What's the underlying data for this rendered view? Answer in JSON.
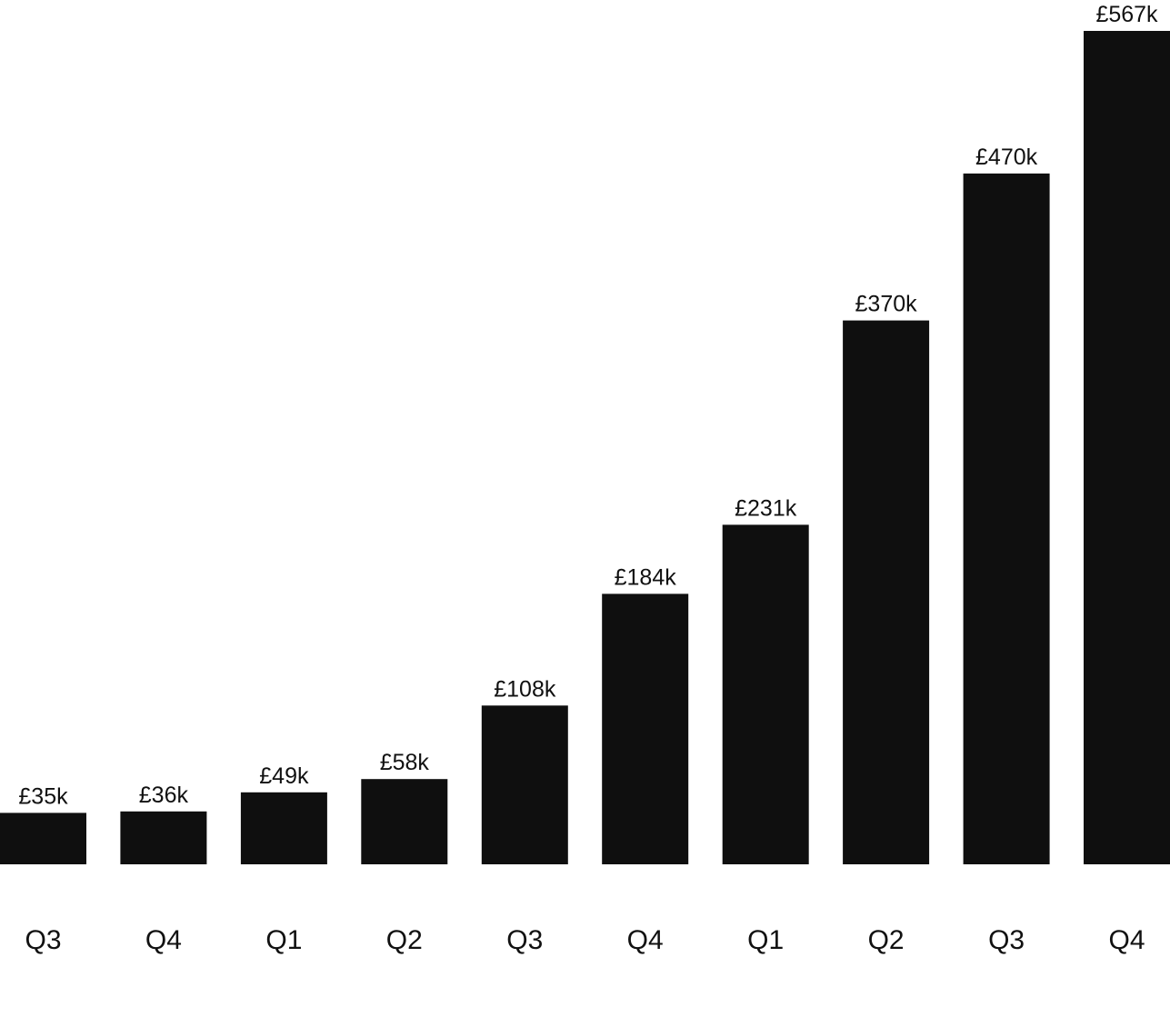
{
  "chart_data": {
    "type": "bar",
    "title": "",
    "xlabel": "",
    "ylabel": "",
    "categories": [
      "Q3",
      "Q4",
      "Q1",
      "Q2",
      "Q3",
      "Q4",
      "Q1",
      "Q2",
      "Q3",
      "Q4"
    ],
    "values": [
      35,
      36,
      49,
      58,
      108,
      184,
      231,
      370,
      470,
      567
    ],
    "data_labels": [
      "£35k",
      "£36k",
      "£49k",
      "£58k",
      "£108k",
      "£184k",
      "£231k",
      "£370k",
      "£470k",
      "£567k"
    ],
    "unit": "£k",
    "ylim": [
      0,
      567
    ],
    "grid": false,
    "legend": "none",
    "colors": {
      "bar": "#0f0f0f",
      "text": "#111111",
      "background": "#ffffff"
    }
  }
}
